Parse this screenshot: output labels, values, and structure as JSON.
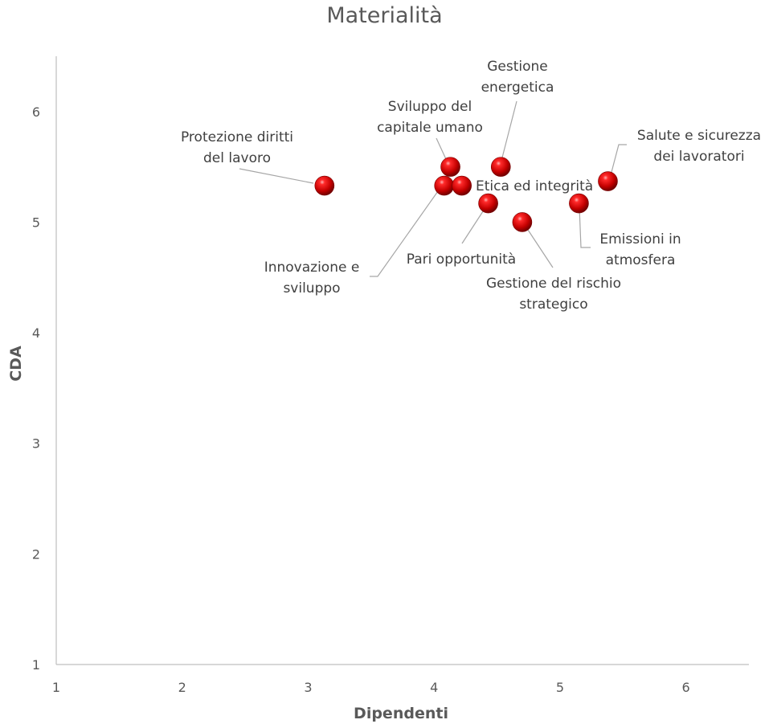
{
  "chart_data": {
    "type": "scatter",
    "title": "Materialità",
    "xlabel": "Dipendenti",
    "ylabel": "CDA",
    "xlim": [
      1,
      6.5
    ],
    "ylim": [
      1,
      6.5
    ],
    "x_ticks": [
      1,
      2,
      3,
      4,
      5,
      6
    ],
    "y_ticks": [
      1,
      2,
      3,
      4,
      5,
      6
    ],
    "grid": false,
    "marker_color": "#cc0000",
    "points": [
      {
        "label": "Protezione diritti\ndel lavoro",
        "x": 3.13,
        "y": 5.33
      },
      {
        "label": "Sviluppo del\ncapitale umano",
        "x": 4.13,
        "y": 5.5
      },
      {
        "label": "Innovazione e\nsviluppo",
        "x": 4.08,
        "y": 5.33
      },
      {
        "label": "Etica ed integrità",
        "x": 4.22,
        "y": 5.33
      },
      {
        "label": "Gestione\nenergetica",
        "x": 4.53,
        "y": 5.5
      },
      {
        "label": "Pari opportunità",
        "x": 4.43,
        "y": 5.17
      },
      {
        "label": "Gestione del rischio\nstrategico",
        "x": 4.7,
        "y": 5.0
      },
      {
        "label": "Emissioni in\natmosfera",
        "x": 5.15,
        "y": 5.17
      },
      {
        "label": "Salute e sicurezza\ndei lavoratori",
        "x": 5.38,
        "y": 5.37
      }
    ]
  }
}
